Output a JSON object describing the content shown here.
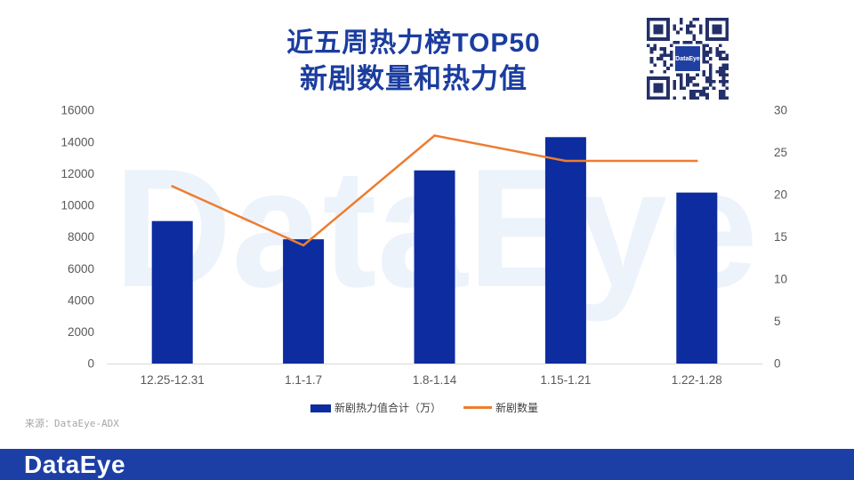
{
  "watermark": "DataEye",
  "qr_code": {
    "center_label": "DataEye"
  },
  "source": "来源：DataEye-ADX",
  "footer": {
    "logo": "DataEye"
  },
  "colors": {
    "title": "#1b3d9f",
    "bar": "#0c2c9f",
    "line": "#ed7d31",
    "axis": "#d9d9d9",
    "footer": "#1c3fa6",
    "watermark": "#edf3fb",
    "qr": "#24306a",
    "qr_center": "#1f3fa3"
  },
  "chart_data": {
    "type": "bar",
    "title": "近五周热力榜TOP50",
    "subtitle": "新剧数量和热力值",
    "categories": [
      "12.25-12.31",
      "1.1-1.7",
      "1.8-1.14",
      "1.15-1.21",
      "1.22-1.28"
    ],
    "series": [
      {
        "name": "新剧热力值合计（万）",
        "type": "bar",
        "axis": "left",
        "values": [
          9000,
          7850,
          12200,
          14300,
          10800
        ]
      },
      {
        "name": "新剧数量",
        "type": "line",
        "axis": "right",
        "values": [
          21,
          14,
          27,
          24,
          24
        ]
      }
    ],
    "y_left": {
      "min": 0,
      "max": 16000,
      "step": 2000
    },
    "y_right": {
      "min": 0,
      "max": 30,
      "step": 5
    },
    "grid": false,
    "legend": "bottom"
  }
}
